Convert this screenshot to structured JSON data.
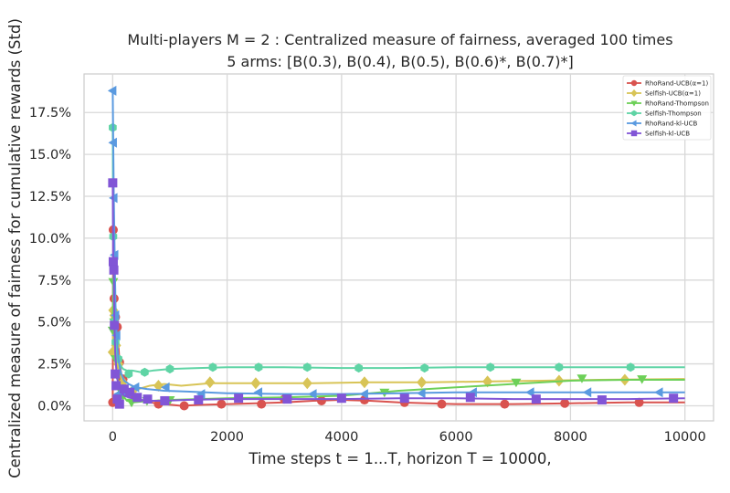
{
  "chart_data": {
    "type": "line",
    "title": "Multi-players M = 2 : Centralized measure of fairness, averaged 100 times",
    "subtitle": "5 arms: [B(0.3), B(0.4), B(0.5), B(0.6)*, B(0.7)*]",
    "xlabel": "Time steps t = 1...T, horizon T = 10000,",
    "ylabel": "Centralized measure of fairness for cumulative rewards (Std)",
    "xlim": [
      -500,
      10500
    ],
    "ylim": [
      -0.9,
      19.8
    ],
    "xticks": [
      0,
      2000,
      4000,
      6000,
      8000,
      10000
    ],
    "xtick_labels": [
      "0",
      "2000",
      "4000",
      "6000",
      "8000",
      "10000"
    ],
    "yticks": [
      0,
      2.5,
      5,
      7.5,
      10,
      12.5,
      15,
      17.5
    ],
    "ytick_labels": [
      "0.0%",
      "2.5%",
      "5.0%",
      "7.5%",
      "10.0%",
      "12.5%",
      "15.0%",
      "17.5%"
    ],
    "grid": true,
    "legend_position": "top-right",
    "series": [
      {
        "name": "RhoRand-UCB(α=1)",
        "color": "#d9534f",
        "marker": "circle",
        "x": [
          1,
          10,
          25,
          50,
          80,
          120,
          180,
          300,
          450,
          650,
          900,
          1200,
          1500,
          2000,
          2500,
          3000,
          3500,
          4000,
          4500,
          5000,
          5500,
          6000,
          7000,
          8000,
          9000,
          10000
        ],
        "y": [
          0.2,
          10.5,
          6.4,
          5.3,
          4.7,
          2.6,
          1.2,
          0.6,
          0.4,
          0.2,
          0.1,
          0.0,
          0.05,
          0.1,
          0.15,
          0.2,
          0.3,
          0.35,
          0.3,
          0.2,
          0.15,
          0.1,
          0.1,
          0.15,
          0.2,
          0.2
        ],
        "marker_x": [
          1,
          10,
          25,
          50,
          80,
          120,
          180,
          800,
          1250,
          1900,
          2600,
          3000,
          3650,
          4400,
          5100,
          5750,
          6850,
          7900,
          9200
        ],
        "marker_y": [
          0.2,
          10.5,
          6.4,
          5.3,
          4.7,
          2.6,
          1.6,
          0.1,
          0.0,
          0.1,
          0.1,
          0.4,
          0.3,
          0.35,
          0.2,
          0.1,
          0.1,
          0.15,
          0.2
        ]
      },
      {
        "name": "Selfish-UCB(α=1)",
        "color": "#d8c457",
        "marker": "diamond",
        "x": [
          1,
          10,
          30,
          60,
          100,
          150,
          220,
          300,
          450,
          650,
          900,
          1200,
          1700,
          2500,
          3500,
          4500,
          5500,
          6500,
          7500,
          8500,
          10000
        ],
        "y": [
          3.2,
          5.7,
          5.4,
          3.6,
          2.5,
          1.6,
          1.1,
          0.8,
          1.0,
          1.2,
          1.3,
          1.2,
          1.35,
          1.35,
          1.35,
          1.4,
          1.4,
          1.45,
          1.5,
          1.55,
          1.6
        ],
        "marker_x": [
          1,
          10,
          30,
          60,
          100,
          180,
          350,
          800,
          1700,
          2500,
          3400,
          4400,
          5400,
          6550,
          7800,
          8950
        ],
        "marker_y": [
          3.2,
          5.7,
          5.4,
          3.6,
          2.5,
          1.4,
          0.9,
          1.2,
          1.4,
          1.35,
          1.35,
          1.4,
          1.4,
          1.45,
          1.5,
          1.55
        ]
      },
      {
        "name": "RhoRand-Thompson",
        "color": "#6dd058",
        "marker": "triangle-down",
        "x": [
          1,
          10,
          25,
          50,
          80,
          120,
          180,
          250,
          350,
          500,
          700,
          1000,
          1500,
          2000,
          3000,
          4000,
          5000,
          6000,
          7000,
          8000,
          9000,
          10000
        ],
        "y": [
          4.5,
          7.4,
          5.0,
          2.8,
          1.8,
          1.0,
          0.6,
          0.3,
          0.2,
          0.25,
          0.3,
          0.35,
          0.4,
          0.45,
          0.5,
          0.6,
          0.9,
          1.1,
          1.3,
          1.5,
          1.55,
          1.55
        ],
        "marker_x": [
          1,
          10,
          25,
          50,
          80,
          120,
          180,
          330,
          600,
          1000,
          4750,
          7050,
          8200,
          9250
        ],
        "marker_y": [
          4.5,
          7.4,
          5.0,
          2.8,
          1.8,
          1.0,
          0.6,
          0.2,
          0.3,
          0.35,
          0.8,
          1.4,
          1.65,
          1.6
        ]
      },
      {
        "name": "Selfish-Thompson",
        "color": "#5fd4a5",
        "marker": "hexagon",
        "x": [
          1,
          10,
          25,
          50,
          80,
          120,
          180,
          250,
          350,
          500,
          700,
          1000,
          1500,
          2000,
          3000,
          4000,
          5000,
          6000,
          7000,
          8000,
          9000,
          10000
        ],
        "y": [
          16.6,
          10.1,
          5.0,
          3.8,
          3.0,
          2.5,
          2.2,
          2.1,
          2.1,
          2.0,
          2.1,
          2.2,
          2.25,
          2.3,
          2.3,
          2.25,
          2.25,
          2.3,
          2.3,
          2.3,
          2.3,
          2.3
        ],
        "marker_x": [
          1,
          10,
          25,
          50,
          100,
          280,
          560,
          1000,
          1750,
          2550,
          3400,
          4300,
          5450,
          6600,
          7800,
          9050
        ],
        "marker_y": [
          16.6,
          10.1,
          5.0,
          3.8,
          2.8,
          1.9,
          2.0,
          2.2,
          2.3,
          2.3,
          2.3,
          2.25,
          2.25,
          2.3,
          2.3,
          2.3
        ]
      },
      {
        "name": "RhoRand-kl-UCB",
        "color": "#5a9ae0",
        "marker": "triangle-left",
        "x": [
          1,
          10,
          20,
          35,
          50,
          70,
          100,
          140,
          200,
          280,
          400,
          600,
          900,
          1300,
          2000,
          3000,
          4000,
          5000,
          6000,
          7000,
          8000,
          9000,
          10000
        ],
        "y": [
          18.8,
          15.7,
          12.4,
          9.0,
          6.0,
          4.2,
          2.8,
          2.0,
          1.5,
          1.3,
          1.1,
          1.0,
          0.9,
          0.85,
          0.75,
          0.7,
          0.7,
          0.75,
          0.8,
          0.8,
          0.8,
          0.8,
          0.8
        ],
        "marker_x": [
          1,
          10,
          20,
          35,
          50,
          70,
          100,
          170,
          400,
          930,
          1550,
          2550,
          3500,
          4400,
          5400,
          6300,
          7300,
          8300,
          9550
        ],
        "marker_y": [
          18.8,
          15.7,
          12.4,
          9.0,
          5.4,
          4.2,
          0.7,
          0.8,
          1.1,
          1.1,
          0.7,
          0.8,
          0.7,
          0.7,
          0.75,
          0.8,
          0.8,
          0.8,
          0.8
        ]
      },
      {
        "name": "Selfish-kl-UCB",
        "color": "#8155d6",
        "marker": "square",
        "x": [
          1,
          10,
          20,
          30,
          45,
          60,
          80,
          110,
          150,
          200,
          280,
          400,
          600,
          900,
          1300,
          2000,
          3000,
          4000,
          5000,
          6000,
          7000,
          8000,
          9000,
          10000
        ],
        "y": [
          13.3,
          8.6,
          8.1,
          4.8,
          3.2,
          2.3,
          1.6,
          1.2,
          0.8,
          0.6,
          0.5,
          0.4,
          0.3,
          0.3,
          0.35,
          0.4,
          0.4,
          0.4,
          0.45,
          0.45,
          0.4,
          0.4,
          0.4,
          0.45
        ],
        "marker_x": [
          1,
          10,
          20,
          30,
          45,
          60,
          80,
          120,
          200,
          300,
          430,
          610,
          910,
          1500,
          2200,
          3050,
          4000,
          5100,
          6250,
          7400,
          8550,
          9800
        ],
        "marker_y": [
          13.3,
          8.6,
          8.1,
          4.8,
          1.9,
          1.2,
          0.4,
          0.1,
          1.0,
          0.8,
          0.5,
          0.4,
          0.3,
          0.35,
          0.45,
          0.4,
          0.45,
          0.45,
          0.5,
          0.4,
          0.35,
          0.45
        ]
      }
    ]
  }
}
